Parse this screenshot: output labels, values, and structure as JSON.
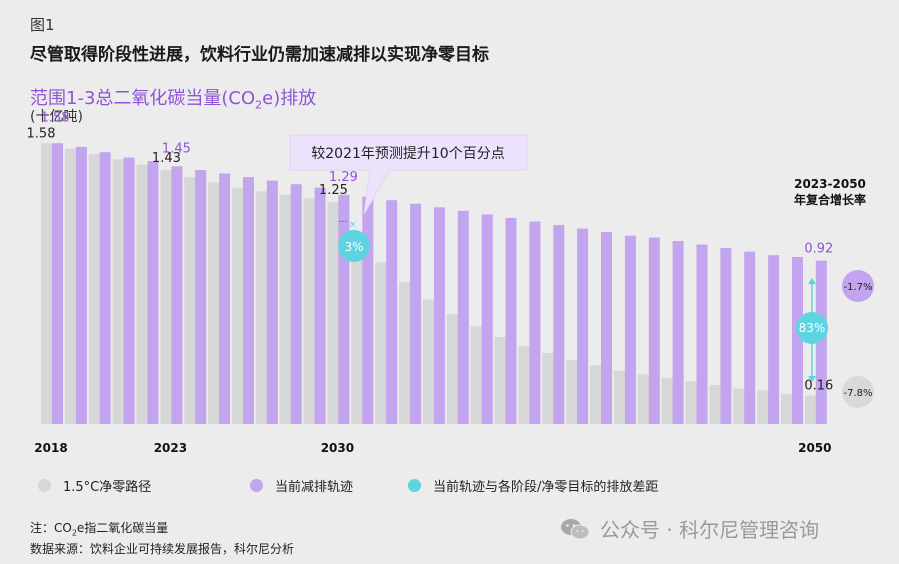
{
  "header": {
    "figure_label": "图1",
    "title": "尽管取得阶段性进展，饮料行业仍需加速减排以实现净零目标"
  },
  "chart_title": {
    "prefix": "范围1-3总二氧化碳当量(CO",
    "sub": "2",
    "suffix": "e)排放"
  },
  "unit": "(十亿吨)",
  "cagr_heading": {
    "line1": "2023-2050",
    "line2": "年复合增长率"
  },
  "callout": {
    "text": "较2021年预测提升10个百分点",
    "gap_2030": "3%",
    "gap_2050": "83%"
  },
  "cagr": {
    "current": "-1.7%",
    "pathway": "-7.8%"
  },
  "colors": {
    "pathway": "#d7d7d7",
    "current": "#c2a4ef",
    "gap": "#5dd4e0",
    "label_purple": "#8f55d6",
    "background": "#ececec"
  },
  "chart_data": {
    "type": "bar",
    "ylabel": "(十亿吨)",
    "x": [
      2018,
      2019,
      2020,
      2021,
      2022,
      2023,
      2024,
      2025,
      2026,
      2027,
      2028,
      2029,
      2030,
      2031,
      2032,
      2033,
      2034,
      2035,
      2036,
      2037,
      2038,
      2039,
      2040,
      2041,
      2042,
      2043,
      2044,
      2045,
      2046,
      2047,
      2048,
      2049,
      2050
    ],
    "x_tick_labels": [
      "2018",
      "2023",
      "2030",
      "2050"
    ],
    "ylim": [
      0,
      1.7
    ],
    "series": [
      {
        "name": "1.5°C净零路径",
        "values": [
          1.58,
          1.55,
          1.52,
          1.49,
          1.46,
          1.43,
          1.39,
          1.36,
          1.33,
          1.31,
          1.29,
          1.27,
          1.25,
          1.07,
          0.91,
          0.8,
          0.7,
          0.62,
          0.55,
          0.49,
          0.44,
          0.4,
          0.36,
          0.33,
          0.3,
          0.28,
          0.26,
          0.24,
          0.22,
          0.2,
          0.19,
          0.17,
          0.16
        ]
      },
      {
        "name": "当前减排轨迹",
        "values": [
          1.58,
          1.56,
          1.53,
          1.5,
          1.48,
          1.45,
          1.43,
          1.41,
          1.39,
          1.37,
          1.35,
          1.33,
          1.29,
          1.28,
          1.26,
          1.24,
          1.22,
          1.2,
          1.18,
          1.16,
          1.14,
          1.12,
          1.1,
          1.08,
          1.06,
          1.05,
          1.03,
          1.01,
          0.99,
          0.97,
          0.95,
          0.94,
          0.92
        ]
      }
    ],
    "data_labels": [
      {
        "x": 2018,
        "series": "1.5°C净零路径",
        "text": "1.58"
      },
      {
        "x": 2018,
        "series": "当前减排轨迹",
        "text": "1.58"
      },
      {
        "x": 2023,
        "series": "1.5°C净零路径",
        "text": "1.43"
      },
      {
        "x": 2023,
        "series": "当前减排轨迹",
        "text": "1.45"
      },
      {
        "x": 2030,
        "series": "1.5°C净零路径",
        "text": "1.25"
      },
      {
        "x": 2030,
        "series": "当前减排轨迹",
        "text": "1.29"
      },
      {
        "x": 2050,
        "series": "当前减排轨迹",
        "text": "0.92"
      },
      {
        "x": 2050,
        "series": "1.5°C净零路径",
        "text": "0.16"
      }
    ]
  },
  "legend": {
    "items": [
      {
        "label": "1.5°C净零路径",
        "color": "#d7d7d7"
      },
      {
        "label": "当前减排轨迹",
        "color": "#c2a4ef"
      },
      {
        "label": "当前轨迹与各阶段/净零目标的排放差距",
        "color": "#5dd4e0"
      }
    ]
  },
  "notes": {
    "line1_prefix": "注：CO",
    "line1_sub": "2",
    "line1_suffix": "e指二氧化碳当量",
    "line2": "数据来源：饮料企业可持续发展报告，科尔尼分析"
  },
  "watermark": {
    "text": "公众号 · 科尔尼管理咨询",
    "icon": "wechat-icon"
  }
}
